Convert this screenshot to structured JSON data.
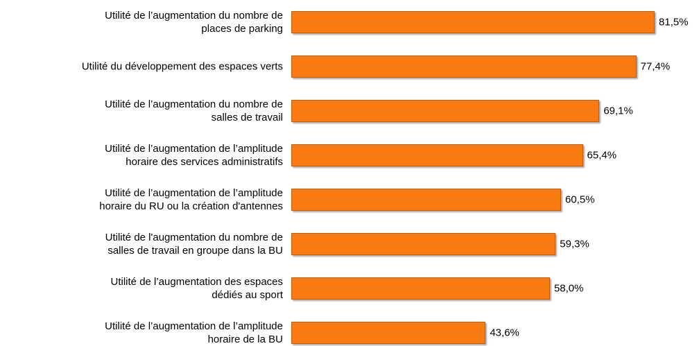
{
  "chart_data": {
    "type": "hbar",
    "categories": [
      "Utilité de l’augmentation du nombre de\nplaces de parking",
      "Utilité du développement des espaces verts",
      "Utilité de l’augmentation du nombre de\nsalles de travail",
      "Utilité de l’augmentation de l’amplitude\nhoraire des services administratifs",
      "Utilité de l’augmentation de l’amplitude\nhoraire du RU ou la création d'antennes",
      "Utilité de l'augmentation du nombre de\nsalles de travail en groupe dans la BU",
      "Utilité de l’augmentation des espaces\ndédiés au sport",
      "Utilité de l’augmentation de l’amplitude\nhoraire de la BU"
    ],
    "values": [
      81.5,
      77.4,
      69.1,
      65.4,
      60.5,
      59.3,
      58.0,
      43.6
    ],
    "value_labels": [
      "81,5%",
      "77,4%",
      "69,1%",
      "65,4%",
      "60,5%",
      "59,3%",
      "58,0%",
      "43,6%"
    ],
    "color": "#fa7a12"
  }
}
